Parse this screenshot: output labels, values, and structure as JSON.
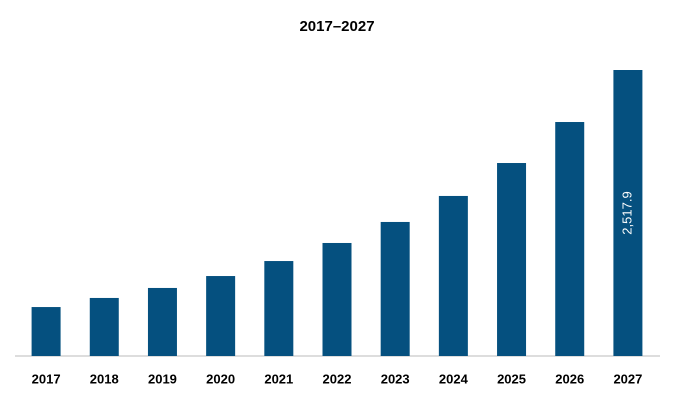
{
  "chart_data": {
    "type": "bar",
    "title": "2017–2027",
    "categories": [
      "2017",
      "2018",
      "2019",
      "2020",
      "2021",
      "2022",
      "2023",
      "2024",
      "2025",
      "2026",
      "2027"
    ],
    "values": [
      431,
      511,
      599,
      704,
      836,
      995,
      1180,
      1409,
      1699,
      2060,
      2517.9
    ],
    "value_labels": [
      null,
      null,
      null,
      null,
      null,
      null,
      null,
      null,
      null,
      null,
      "2,517.9"
    ],
    "color": "#05507f"
  }
}
